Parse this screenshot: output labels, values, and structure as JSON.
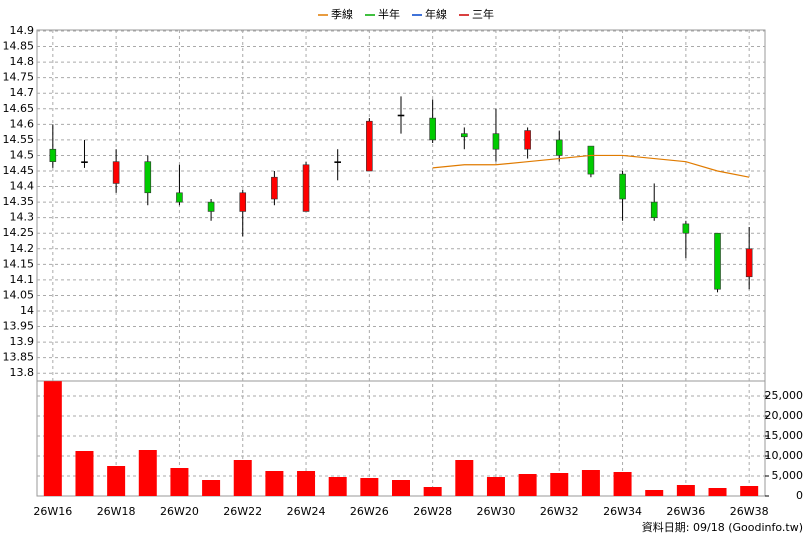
{
  "chart_data": {
    "type": "candlestick",
    "footer": "資料日期: 09/18  (Goodinfo.tw)",
    "categories": [
      "26W16",
      null,
      "26W18",
      null,
      "26W20",
      null,
      "26W22",
      null,
      "26W24",
      null,
      "26W26",
      null,
      "26W28",
      null,
      "26W30",
      null,
      "26W32",
      null,
      "26W34",
      null,
      "26W36",
      null,
      "26W38"
    ],
    "open": [
      14.52,
      14.48,
      14.41,
      14.48,
      14.38,
      14.35,
      14.32,
      14.36,
      14.32,
      14.48,
      14.45,
      14.63,
      14.62,
      14.57,
      14.57,
      14.52,
      14.55,
      14.53,
      14.44,
      14.35,
      14.28,
      14.25,
      14.11
    ],
    "high": [
      14.6,
      14.55,
      14.52,
      14.5,
      14.47,
      14.36,
      14.39,
      14.45,
      14.48,
      14.52,
      14.62,
      14.69,
      14.68,
      14.59,
      14.65,
      14.59,
      14.58,
      14.53,
      14.45,
      14.41,
      14.29,
      14.25,
      14.27
    ],
    "low": [
      14.46,
      14.46,
      14.38,
      14.34,
      14.34,
      14.29,
      14.24,
      14.34,
      14.32,
      14.42,
      14.45,
      14.57,
      14.54,
      14.52,
      14.48,
      14.49,
      14.48,
      14.43,
      14.29,
      14.29,
      14.17,
      14.06,
      14.07
    ],
    "close": [
      14.48,
      14.48,
      14.48,
      14.38,
      14.35,
      14.32,
      14.38,
      14.43,
      14.47,
      14.48,
      14.61,
      14.63,
      14.55,
      14.56,
      14.52,
      14.58,
      14.5,
      14.44,
      14.36,
      14.3,
      14.25,
      14.07,
      14.2
    ],
    "up_color": "#ff0000",
    "down_color": "#00cc00",
    "ylim": [
      13.775,
      14.9
    ],
    "yticks": [
      14.9,
      14.85,
      14.8,
      14.75,
      14.7,
      14.65,
      14.6,
      14.55,
      14.5,
      14.45,
      14.4,
      14.35,
      14.3,
      14.25,
      14.2,
      14.15,
      14.1,
      14.05,
      14,
      13.95,
      13.9,
      13.85,
      13.8
    ],
    "grid": true,
    "series": [
      {
        "name": "季線",
        "color": "#e07b00",
        "values": [
          null,
          null,
          null,
          null,
          null,
          null,
          null,
          null,
          null,
          null,
          null,
          null,
          14.46,
          14.47,
          14.47,
          14.48,
          14.49,
          14.5,
          14.5,
          14.49,
          14.48,
          14.45,
          14.43
        ]
      },
      {
        "name": "半年",
        "color": "#00aa00",
        "values": [
          null,
          null,
          null,
          null,
          null,
          null,
          null,
          null,
          null,
          null,
          null,
          null,
          null,
          null,
          null,
          null,
          null,
          null,
          null,
          null,
          null,
          null,
          null
        ]
      },
      {
        "name": "年線",
        "color": "#0044cc",
        "values": [
          null,
          null,
          null,
          null,
          null,
          null,
          null,
          null,
          null,
          null,
          null,
          null,
          null,
          null,
          null,
          null,
          null,
          null,
          null,
          null,
          null,
          null,
          null
        ]
      },
      {
        "name": "三年",
        "color": "#cc0000",
        "values": [
          null,
          null,
          null,
          null,
          null,
          null,
          null,
          null,
          null,
          null,
          null,
          null,
          null,
          null,
          null,
          null,
          null,
          null,
          null,
          null,
          null,
          null,
          null
        ]
      }
    ],
    "volume": {
      "color": "#ff0000",
      "values": [
        28700,
        11250,
        7500,
        11500,
        7000,
        4000,
        9000,
        6250,
        6250,
        4750,
        4500,
        4000,
        2250,
        9000,
        4750,
        5500,
        5750,
        6500,
        6000,
        1500,
        2750,
        2000,
        2500
      ],
      "ylim": [
        0,
        28750
      ],
      "yticks": [
        0,
        {
          "value": 5000,
          "label": "5,000"
        },
        {
          "value": 10000,
          "label": "10,000"
        },
        {
          "value": 15000,
          "label": "15,000"
        },
        {
          "value": 20000,
          "label": "20,000"
        },
        {
          "value": 25000,
          "label": "25,000"
        }
      ]
    }
  }
}
